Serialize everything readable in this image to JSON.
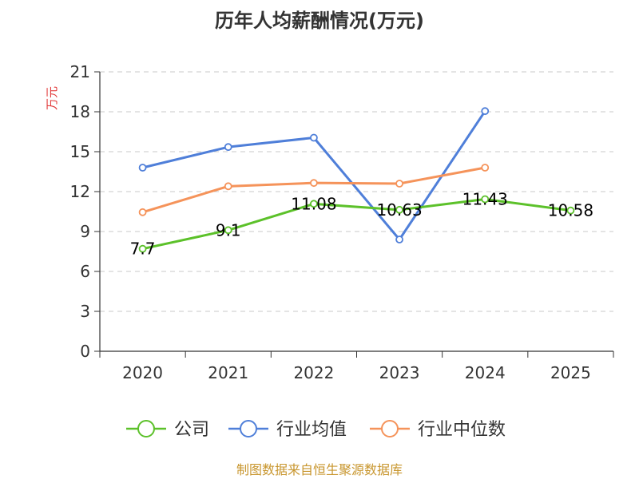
{
  "chart_data": {
    "type": "line",
    "title": "历年人均薪酬情况(万元)",
    "ylabel": "万元",
    "categories": [
      "2020",
      "2021",
      "2022",
      "2023",
      "2024",
      "2025"
    ],
    "ylim": [
      0,
      21
    ],
    "yticks": [
      0,
      3,
      6,
      9,
      12,
      15,
      18,
      21
    ],
    "grid": true,
    "legend_position": "bottom",
    "series": [
      {
        "name": "公司",
        "color": "#5cc12a",
        "values": [
          7.7,
          9.1,
          11.08,
          10.63,
          11.43,
          10.58
        ],
        "labels": [
          "7.7",
          "9.1",
          "11.08",
          "10.63",
          "11.43",
          "10.58"
        ]
      },
      {
        "name": "行业均值",
        "color": "#4f7fd9",
        "values": [
          13.8,
          15.35,
          16.05,
          8.4,
          18.05,
          null
        ]
      },
      {
        "name": "行业中位数",
        "color": "#f5935a",
        "values": [
          10.45,
          12.4,
          12.65,
          12.6,
          13.8,
          null
        ]
      }
    ]
  },
  "colors": {
    "ylabel": "#e23b3b",
    "source": "#c8962e"
  },
  "source": "制图数据来自恒生聚源数据库"
}
